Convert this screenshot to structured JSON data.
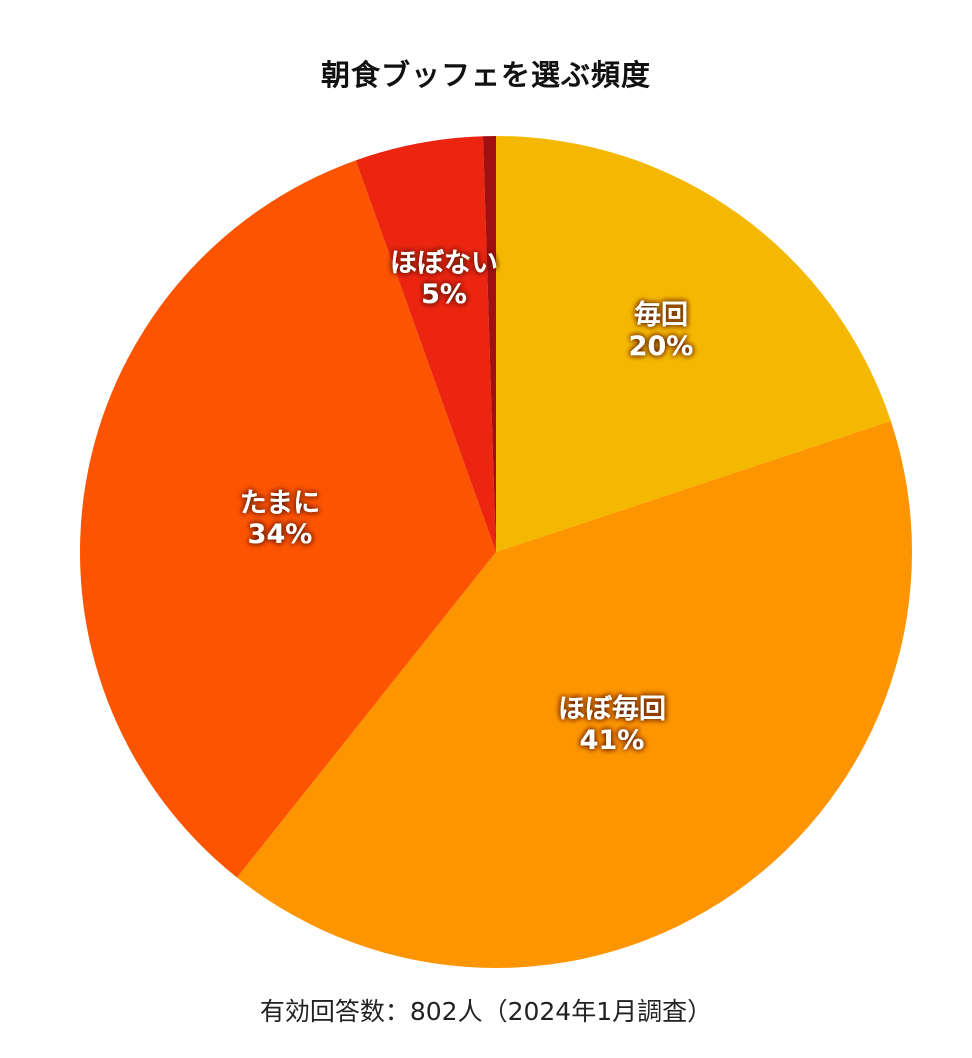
{
  "chart_data": {
    "type": "pie",
    "title": "朝食ブッフェを選ぶ頻度",
    "note": "有効回答数：802人（2024年1月調査）",
    "slices": [
      {
        "label": "毎回",
        "value": 20,
        "value_label": "20%",
        "color": "#f5b800"
      },
      {
        "label": "ほぼ毎回",
        "value": 41,
        "value_label": "41%",
        "color": "#fd9500"
      },
      {
        "label": "たまに",
        "value": 34,
        "value_label": "34%",
        "color": "#fc5400"
      },
      {
        "label": "ほぼない",
        "value": 5,
        "value_label": "5%",
        "color": "#ec2510"
      },
      {
        "label": "",
        "value": 0.5,
        "value_label": "",
        "color": "#a01010"
      }
    ],
    "start_angle": "12 o'clock",
    "direction": "clockwise"
  }
}
